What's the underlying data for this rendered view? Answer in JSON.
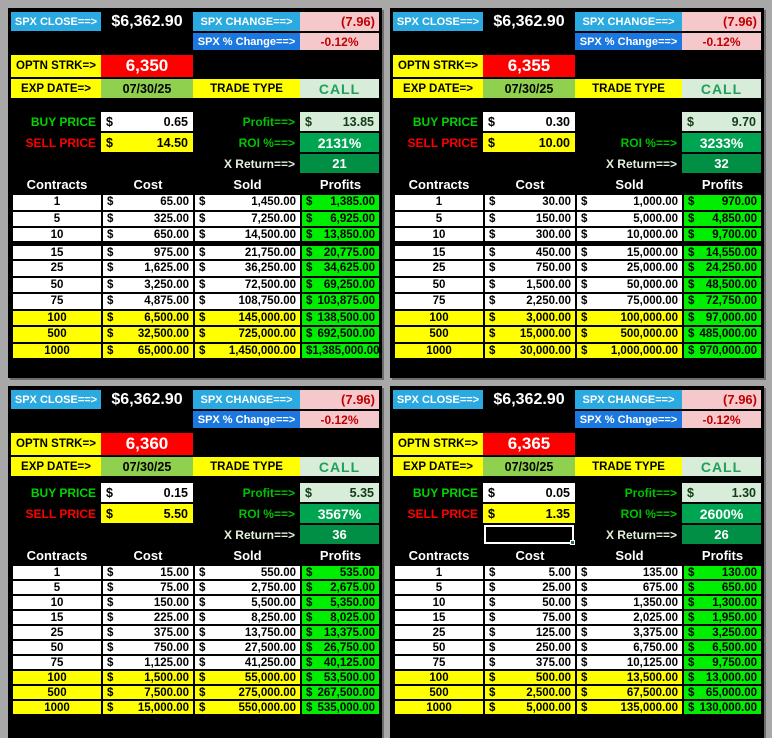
{
  "shared": {
    "cur": "$",
    "spx_close_label": "SPX CLOSE==>",
    "spx_close": "$6,362.90",
    "spx_change_label": "SPX CHANGE==>",
    "spx_change": "(7.96)",
    "spx_pct_label": "SPX % Change==>",
    "spx_pct": "-0.12%",
    "strike_label": "OPTN STRK=>",
    "exp_label": "EXP DATE=>",
    "exp_date": "07/30/25",
    "type_label": "TRADE TYPE",
    "trade_type": "CALL",
    "buy_label": "BUY PRICE",
    "sell_label": "SELL PRICE",
    "profit_label": "Profit==>",
    "roi_label": "ROI %==>",
    "xret_label": "X Return==>",
    "headers": {
      "contracts": "Contracts",
      "cost": "Cost",
      "sold": "Sold",
      "profits": "Profits"
    },
    "colors": {
      "label_blue": "#2aaae1",
      "pct_blue": "#1a78e0",
      "change_pink": "#f5c8cc",
      "change_red_text": "#c00000",
      "strike_red": "#ff0000",
      "input_yellow": "#ffff00",
      "date_green": "#8fd04e",
      "call_pale_green": "#d7ecd9",
      "roi_green": "#00a551",
      "xreturn_green": "#008f45",
      "profit_lime": "#00ef00",
      "panel_black": "#000000",
      "page_gray": "#a8a8a8"
    }
  },
  "panels": [
    {
      "strike": "6,350",
      "buy_price": "0.65",
      "sell_price": "14.50",
      "profit_label": "Profit==>",
      "profit": "13.85",
      "roi": "2131%",
      "x_return": "21",
      "rows": [
        {
          "c": "1",
          "cost": "65.00",
          "sold": "1,450.00",
          "profit": "1,385.00",
          "hl": false
        },
        {
          "c": "5",
          "cost": "325.00",
          "sold": "7,250.00",
          "profit": "6,925.00",
          "hl": false
        },
        {
          "c": "10",
          "cost": "650.00",
          "sold": "14,500.00",
          "profit": "13,850.00",
          "hl": false
        },
        {
          "c": "15",
          "cost": "975.00",
          "sold": "21,750.00",
          "profit": "20,775.00",
          "hl": false
        },
        {
          "c": "25",
          "cost": "1,625.00",
          "sold": "36,250.00",
          "profit": "34,625.00",
          "hl": false
        },
        {
          "c": "50",
          "cost": "3,250.00",
          "sold": "72,500.00",
          "profit": "69,250.00",
          "hl": false
        },
        {
          "c": "75",
          "cost": "4,875.00",
          "sold": "108,750.00",
          "profit": "103,875.00",
          "hl": false
        },
        {
          "c": "100",
          "cost": "6,500.00",
          "sold": "145,000.00",
          "profit": "138,500.00",
          "hl": true
        },
        {
          "c": "500",
          "cost": "32,500.00",
          "sold": "725,000.00",
          "profit": "692,500.00",
          "hl": true
        },
        {
          "c": "1000",
          "cost": "65,000.00",
          "sold": "1,450,000.00",
          "profit": "1,385,000.00",
          "hl": true
        }
      ]
    },
    {
      "strike": "6,355",
      "buy_price": "0.30",
      "sell_price": "10.00",
      "profit_label": "",
      "profit": "9.70",
      "roi": "3233%",
      "x_return": "32",
      "rows": [
        {
          "c": "1",
          "cost": "30.00",
          "sold": "1,000.00",
          "profit": "970.00",
          "hl": false
        },
        {
          "c": "5",
          "cost": "150.00",
          "sold": "5,000.00",
          "profit": "4,850.00",
          "hl": false
        },
        {
          "c": "10",
          "cost": "300.00",
          "sold": "10,000.00",
          "profit": "9,700.00",
          "hl": false
        },
        {
          "c": "15",
          "cost": "450.00",
          "sold": "15,000.00",
          "profit": "14,550.00",
          "hl": false
        },
        {
          "c": "25",
          "cost": "750.00",
          "sold": "25,000.00",
          "profit": "24,250.00",
          "hl": false
        },
        {
          "c": "50",
          "cost": "1,500.00",
          "sold": "50,000.00",
          "profit": "48,500.00",
          "hl": false
        },
        {
          "c": "75",
          "cost": "2,250.00",
          "sold": "75,000.00",
          "profit": "72,750.00",
          "hl": false
        },
        {
          "c": "100",
          "cost": "3,000.00",
          "sold": "100,000.00",
          "profit": "97,000.00",
          "hl": true
        },
        {
          "c": "500",
          "cost": "15,000.00",
          "sold": "500,000.00",
          "profit": "485,000.00",
          "hl": true
        },
        {
          "c": "1000",
          "cost": "30,000.00",
          "sold": "1,000,000.00",
          "profit": "970,000.00",
          "hl": true
        }
      ]
    },
    {
      "strike": "6,360",
      "buy_price": "0.15",
      "sell_price": "5.50",
      "profit_label": "Profit==>",
      "profit": "5.35",
      "roi": "3567%",
      "x_return": "36",
      "rows": [
        {
          "c": "1",
          "cost": "15.00",
          "sold": "550.00",
          "profit": "535.00",
          "hl": false
        },
        {
          "c": "5",
          "cost": "75.00",
          "sold": "2,750.00",
          "profit": "2,675.00",
          "hl": false
        },
        {
          "c": "10",
          "cost": "150.00",
          "sold": "5,500.00",
          "profit": "5,350.00",
          "hl": false
        },
        {
          "c": "15",
          "cost": "225.00",
          "sold": "8,250.00",
          "profit": "8,025.00",
          "hl": false
        },
        {
          "c": "25",
          "cost": "375.00",
          "sold": "13,750.00",
          "profit": "13,375.00",
          "hl": false
        },
        {
          "c": "50",
          "cost": "750.00",
          "sold": "27,500.00",
          "profit": "26,750.00",
          "hl": false
        },
        {
          "c": "75",
          "cost": "1,125.00",
          "sold": "41,250.00",
          "profit": "40,125.00",
          "hl": false
        },
        {
          "c": "100",
          "cost": "1,500.00",
          "sold": "55,000.00",
          "profit": "53,500.00",
          "hl": true
        },
        {
          "c": "500",
          "cost": "7,500.00",
          "sold": "275,000.00",
          "profit": "267,500.00",
          "hl": true
        },
        {
          "c": "1000",
          "cost": "15,000.00",
          "sold": "550,000.00",
          "profit": "535,000.00",
          "hl": true
        }
      ]
    },
    {
      "strike": "6,365",
      "buy_price": "0.05",
      "sell_price": "1.35",
      "profit_label": "Profit==>",
      "profit": "1.30",
      "roi": "2600%",
      "x_return": "26",
      "rows": [
        {
          "c": "1",
          "cost": "5.00",
          "sold": "135.00",
          "profit": "130.00",
          "hl": false
        },
        {
          "c": "5",
          "cost": "25.00",
          "sold": "675.00",
          "profit": "650.00",
          "hl": false
        },
        {
          "c": "10",
          "cost": "50.00",
          "sold": "1,350.00",
          "profit": "1,300.00",
          "hl": false
        },
        {
          "c": "15",
          "cost": "75.00",
          "sold": "2,025.00",
          "profit": "1,950.00",
          "hl": false
        },
        {
          "c": "25",
          "cost": "125.00",
          "sold": "3,375.00",
          "profit": "3,250.00",
          "hl": false
        },
        {
          "c": "50",
          "cost": "250.00",
          "sold": "6,750.00",
          "profit": "6,500.00",
          "hl": false
        },
        {
          "c": "75",
          "cost": "375.00",
          "sold": "10,125.00",
          "profit": "9,750.00",
          "hl": false
        },
        {
          "c": "100",
          "cost": "500.00",
          "sold": "13,500.00",
          "profit": "13,000.00",
          "hl": true
        },
        {
          "c": "500",
          "cost": "2,500.00",
          "sold": "67,500.00",
          "profit": "65,000.00",
          "hl": true
        },
        {
          "c": "1000",
          "cost": "5,000.00",
          "sold": "135,000.00",
          "profit": "130,000.00",
          "hl": true
        }
      ]
    }
  ]
}
